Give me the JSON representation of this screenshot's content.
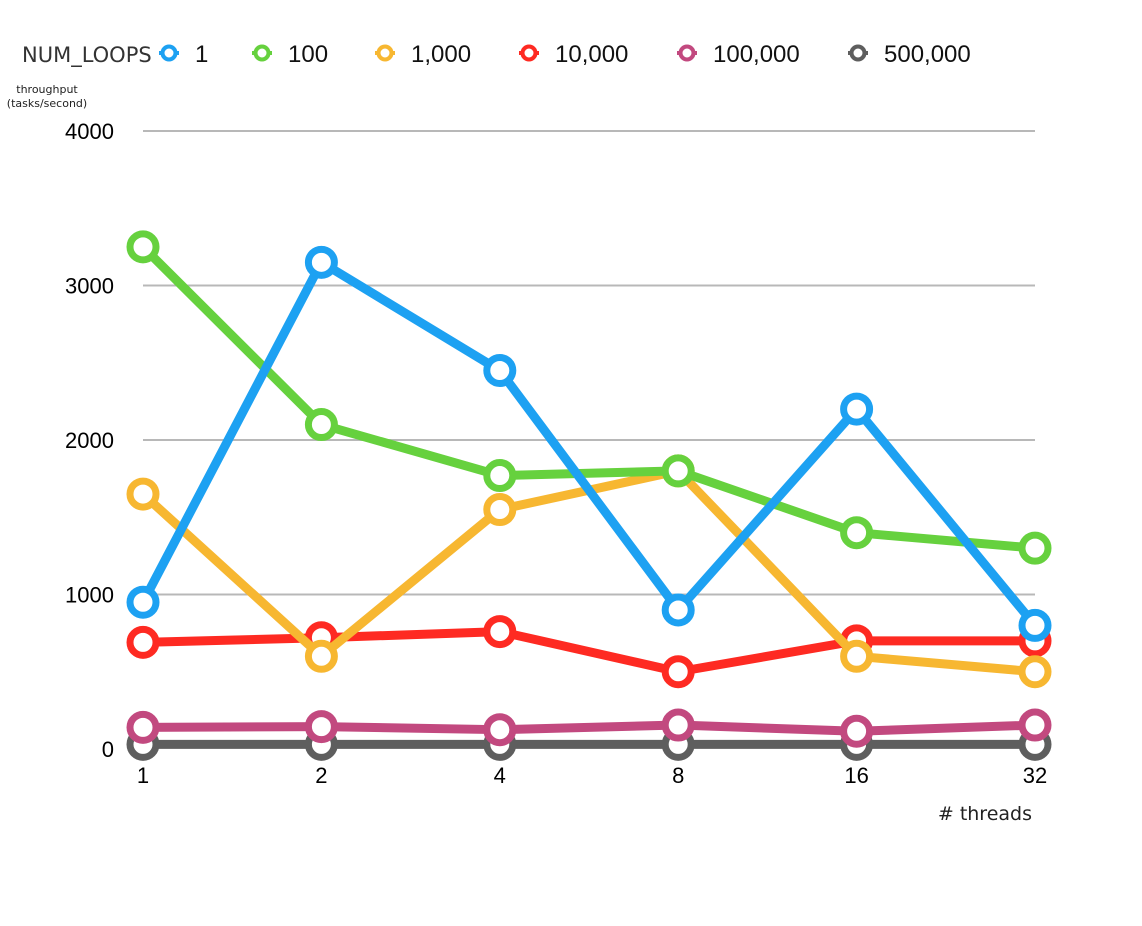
{
  "chart_data": {
    "type": "line",
    "legend_title": "NUM_LOOPS",
    "legend_position": "top",
    "ylabel_line1": "throughput",
    "ylabel_line2": "(tasks/second)",
    "xlabel": "# threads",
    "x": [
      "1",
      "2",
      "4",
      "8",
      "16",
      "32"
    ],
    "ylim": [
      0,
      4000
    ],
    "yticks": [
      "0",
      "1000",
      "2000",
      "3000",
      "4000"
    ],
    "grid": true,
    "series": [
      {
        "name": "1",
        "color": "#1da1f2",
        "values": [
          950,
          3150,
          2450,
          900,
          2200,
          800
        ]
      },
      {
        "name": "100",
        "color": "#66d13e",
        "values": [
          3250,
          2100,
          1770,
          1800,
          1400,
          1300
        ]
      },
      {
        "name": "1,000",
        "color": "#f7b731",
        "values": [
          1650,
          600,
          1550,
          1800,
          600,
          500
        ]
      },
      {
        "name": "10,000",
        "color": "#fe2a22",
        "values": [
          690,
          720,
          760,
          500,
          700,
          700
        ]
      },
      {
        "name": "100,000",
        "color": "#c2497f",
        "values": [
          140,
          145,
          125,
          155,
          115,
          155
        ]
      },
      {
        "name": "500,000",
        "color": "#5e5e5e",
        "values": [
          30,
          30,
          30,
          30,
          30,
          30
        ]
      }
    ]
  }
}
